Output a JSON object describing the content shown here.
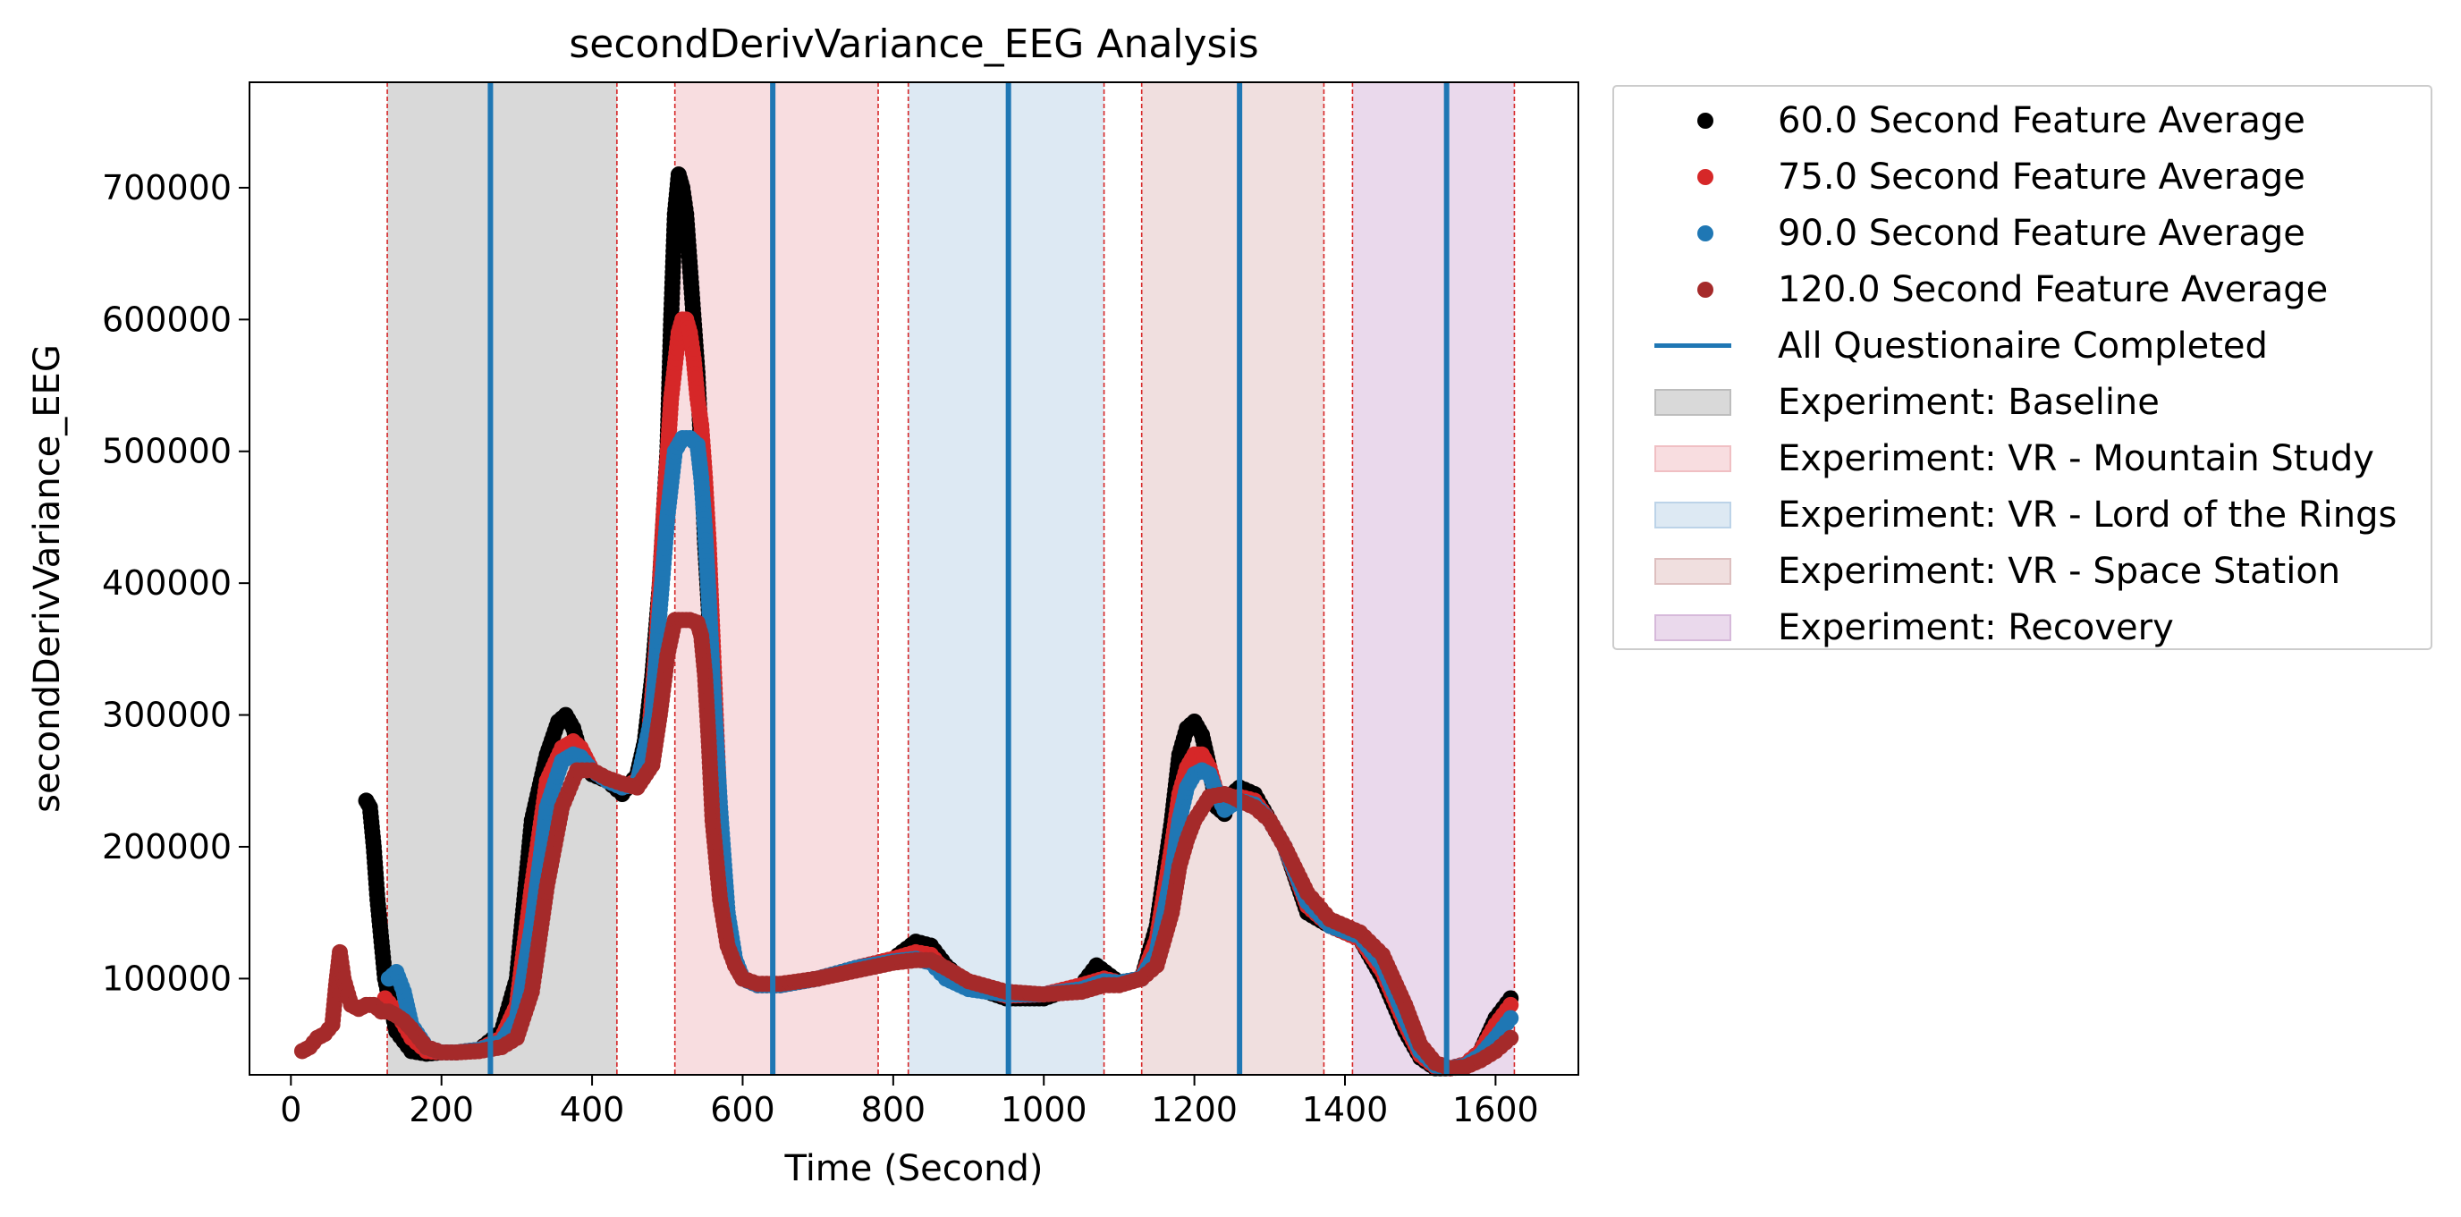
{
  "chart_data": {
    "type": "scatter",
    "title": "secondDerivVariance_EEG Analysis",
    "xlabel": "Time (Second)",
    "ylabel": "secondDerivVariance_EEG",
    "xlim": [
      -55,
      1710
    ],
    "ylim": [
      27000,
      780000
    ],
    "xticks": [
      0,
      200,
      400,
      600,
      800,
      1000,
      1200,
      1400,
      1600
    ],
    "yticks": [
      100000,
      200000,
      300000,
      400000,
      500000,
      600000,
      700000
    ],
    "grid": false,
    "legend_placement": "outside right, top",
    "series": [
      {
        "name": "60.0 Second Feature Average",
        "color": "#000000",
        "x": [
          100,
          105,
          110,
          115,
          125,
          140,
          160,
          180,
          200,
          220,
          250,
          280,
          300,
          320,
          340,
          355,
          365,
          375,
          385,
          400,
          420,
          440,
          460,
          470,
          480,
          490,
          500,
          505,
          510,
          515,
          520,
          525,
          530,
          535,
          540,
          545,
          550,
          555,
          560,
          570,
          580,
          590,
          600,
          620,
          650,
          700,
          750,
          800,
          830,
          850,
          870,
          900,
          950,
          1000,
          1050,
          1070,
          1100,
          1130,
          1150,
          1170,
          1180,
          1190,
          1200,
          1210,
          1220,
          1230,
          1240,
          1250,
          1260,
          1280,
          1300,
          1320,
          1350,
          1380,
          1420,
          1450,
          1480,
          1500,
          1520,
          1540,
          1560,
          1580,
          1600,
          1620
        ],
        "y": [
          235000,
          230000,
          200000,
          160000,
          100000,
          60000,
          45000,
          43000,
          44000,
          44000,
          46000,
          60000,
          100000,
          220000,
          270000,
          295000,
          300000,
          290000,
          270000,
          255000,
          250000,
          240000,
          255000,
          280000,
          330000,
          400000,
          500000,
          600000,
          680000,
          710000,
          700000,
          680000,
          640000,
          600000,
          560000,
          500000,
          430000,
          380000,
          320000,
          220000,
          150000,
          110000,
          100000,
          95000,
          95000,
          100000,
          108000,
          115000,
          128000,
          125000,
          110000,
          95000,
          85000,
          85000,
          95000,
          110000,
          97000,
          100000,
          140000,
          220000,
          270000,
          290000,
          295000,
          285000,
          260000,
          230000,
          225000,
          240000,
          245000,
          240000,
          220000,
          200000,
          150000,
          140000,
          130000,
          100000,
          60000,
          40000,
          32000,
          32000,
          35000,
          45000,
          70000,
          85000
        ]
      },
      {
        "name": "75.0 Second Feature Average",
        "color": "#d62728",
        "x": [
          125,
          140,
          160,
          180,
          200,
          220,
          250,
          280,
          300,
          320,
          340,
          360,
          375,
          385,
          400,
          420,
          440,
          460,
          475,
          485,
          495,
          505,
          515,
          520,
          525,
          530,
          535,
          540,
          545,
          550,
          555,
          560,
          570,
          580,
          590,
          600,
          620,
          650,
          700,
          750,
          800,
          830,
          850,
          870,
          900,
          950,
          1000,
          1050,
          1080,
          1100,
          1130,
          1150,
          1170,
          1180,
          1190,
          1200,
          1210,
          1220,
          1230,
          1240,
          1250,
          1260,
          1280,
          1300,
          1320,
          1350,
          1380,
          1420,
          1450,
          1480,
          1500,
          1520,
          1540,
          1560,
          1580,
          1600,
          1620
        ],
        "y": [
          85000,
          75000,
          55000,
          45000,
          44000,
          44000,
          46000,
          55000,
          80000,
          170000,
          250000,
          275000,
          280000,
          275000,
          258000,
          250000,
          245000,
          250000,
          280000,
          350000,
          450000,
          540000,
          590000,
          600000,
          600000,
          590000,
          570000,
          540000,
          520000,
          480000,
          430000,
          360000,
          220000,
          140000,
          110000,
          100000,
          95000,
          95000,
          100000,
          108000,
          115000,
          120000,
          118000,
          105000,
          95000,
          87000,
          88000,
          95000,
          100000,
          97000,
          100000,
          130000,
          200000,
          240000,
          260000,
          270000,
          270000,
          260000,
          240000,
          230000,
          235000,
          238000,
          235000,
          220000,
          200000,
          155000,
          140000,
          130000,
          105000,
          65000,
          42000,
          33000,
          32000,
          35000,
          45000,
          65000,
          80000
        ]
      },
      {
        "name": "90.0 Second Feature Average",
        "color": "#1f77b4",
        "x": [
          130,
          140,
          150,
          160,
          180,
          200,
          220,
          250,
          280,
          300,
          320,
          340,
          360,
          375,
          385,
          400,
          420,
          440,
          460,
          480,
          490,
          500,
          510,
          520,
          530,
          540,
          545,
          550,
          555,
          560,
          570,
          580,
          590,
          600,
          620,
          650,
          700,
          750,
          800,
          830,
          850,
          870,
          900,
          950,
          1000,
          1050,
          1080,
          1100,
          1130,
          1150,
          1170,
          1180,
          1190,
          1200,
          1210,
          1220,
          1230,
          1240,
          1250,
          1260,
          1280,
          1300,
          1320,
          1350,
          1380,
          1420,
          1450,
          1480,
          1500,
          1520,
          1540,
          1560,
          1580,
          1600,
          1620
        ],
        "y": [
          100000,
          105000,
          90000,
          65000,
          48000,
          44000,
          44000,
          46000,
          52000,
          70000,
          140000,
          230000,
          265000,
          270000,
          268000,
          258000,
          250000,
          245000,
          248000,
          300000,
          380000,
          450000,
          500000,
          510000,
          510000,
          505000,
          480000,
          440000,
          390000,
          330000,
          230000,
          150000,
          115000,
          100000,
          95000,
          95000,
          100000,
          108000,
          113000,
          115000,
          112000,
          100000,
          92000,
          88000,
          88000,
          92000,
          98000,
          97000,
          100000,
          120000,
          180000,
          220000,
          245000,
          255000,
          258000,
          255000,
          240000,
          228000,
          232000,
          235000,
          232000,
          220000,
          200000,
          158000,
          140000,
          132000,
          110000,
          70000,
          45000,
          34000,
          32000,
          34000,
          42000,
          55000,
          70000
        ]
      },
      {
        "name": "120.0 Second Feature Average",
        "color": "#a52a2a",
        "x": [
          15,
          25,
          35,
          45,
          55,
          60,
          65,
          70,
          80,
          90,
          100,
          110,
          120,
          130,
          140,
          150,
          160,
          170,
          180,
          200,
          220,
          250,
          280,
          300,
          320,
          340,
          360,
          380,
          400,
          420,
          440,
          460,
          480,
          490,
          500,
          510,
          520,
          530,
          540,
          545,
          550,
          555,
          560,
          570,
          580,
          590,
          600,
          620,
          650,
          700,
          750,
          800,
          830,
          850,
          870,
          900,
          950,
          1000,
          1050,
          1080,
          1100,
          1130,
          1150,
          1170,
          1180,
          1190,
          1200,
          1220,
          1240,
          1250,
          1260,
          1280,
          1300,
          1320,
          1350,
          1380,
          1420,
          1450,
          1480,
          1500,
          1520,
          1540,
          1560,
          1580,
          1600,
          1620
        ],
        "y": [
          45000,
          48000,
          55000,
          58000,
          65000,
          95000,
          120000,
          100000,
          80000,
          77000,
          80000,
          80000,
          75000,
          75000,
          72000,
          68000,
          62000,
          55000,
          48000,
          44000,
          44000,
          45000,
          48000,
          55000,
          90000,
          170000,
          230000,
          258000,
          258000,
          252000,
          248000,
          245000,
          262000,
          300000,
          345000,
          372000,
          372000,
          372000,
          370000,
          360000,
          330000,
          280000,
          220000,
          160000,
          125000,
          110000,
          100000,
          96000,
          96000,
          100000,
          106000,
          112000,
          114000,
          114000,
          108000,
          98000,
          90000,
          88000,
          90000,
          95000,
          95000,
          100000,
          110000,
          150000,
          185000,
          205000,
          220000,
          238000,
          240000,
          238000,
          235000,
          230000,
          220000,
          200000,
          165000,
          145000,
          135000,
          118000,
          80000,
          50000,
          36000,
          32000,
          33000,
          38000,
          45000,
          55000
        ]
      }
    ],
    "vlines": {
      "name": "All Questionaire Completed",
      "color": "#1f77b4",
      "x": [
        265,
        640,
        953,
        1260,
        1535
      ]
    },
    "regions": [
      {
        "name": "Experiment: Baseline",
        "x_start": 128,
        "x_end": 433,
        "color": "#d9d9d9"
      },
      {
        "name": "Experiment: VR - Mountain Study",
        "x_start": 510,
        "x_end": 780,
        "color": "#f8dde0"
      },
      {
        "name": "Experiment: VR - Lord of the Rings",
        "x_start": 820,
        "x_end": 1080,
        "color": "#dde9f3"
      },
      {
        "name": "Experiment: VR - Space Station",
        "x_start": 1130,
        "x_end": 1372,
        "color": "#f0dfdf"
      },
      {
        "name": "Experiment: Recovery",
        "x_start": 1410,
        "x_end": 1625,
        "color": "#ead9ec"
      }
    ],
    "region_border_color": "#d62728"
  }
}
